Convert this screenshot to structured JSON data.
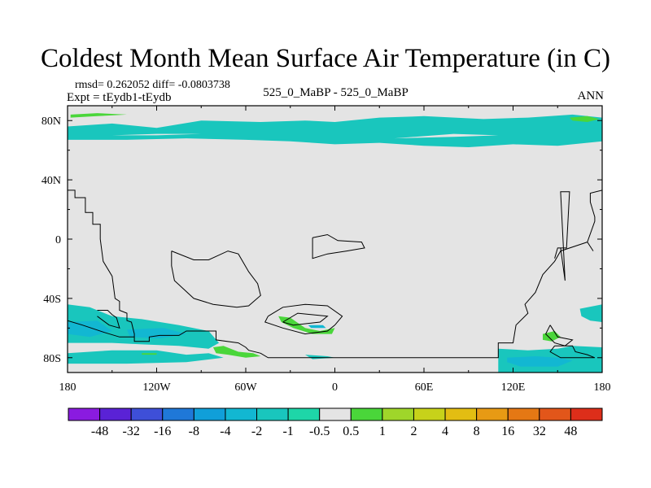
{
  "chart_data": {
    "type": "heatmap",
    "title": "Coldest Month Mean Surface Air Temperature (in C)",
    "stats": "rmsd= 0.262052 diff= -0.0803738",
    "experiment": "Expt = tEydb1-tEydb",
    "center_label": "525_0_MaBP - 525_0_MaBP",
    "season": "ANN",
    "xlabel": "",
    "ylabel": "",
    "xlim": [
      -180,
      180
    ],
    "ylim": [
      -90,
      90
    ],
    "x_ticks": [
      {
        "value": -180,
        "label": "180"
      },
      {
        "value": -120,
        "label": "120W"
      },
      {
        "value": -60,
        "label": "60W"
      },
      {
        "value": 0,
        "label": "0"
      },
      {
        "value": 60,
        "label": "60E"
      },
      {
        "value": 120,
        "label": "120E"
      },
      {
        "value": 180,
        "label": "180"
      }
    ],
    "y_ticks": [
      {
        "value": 80,
        "label": "80N"
      },
      {
        "value": 40,
        "label": "40N"
      },
      {
        "value": 0,
        "label": "0"
      },
      {
        "value": -40,
        "label": "40S"
      },
      {
        "value": -80,
        "label": "80S"
      }
    ],
    "colorbar": {
      "labels": [
        "-48",
        "-32",
        "-16",
        "-8",
        "-4",
        "-2",
        "-1",
        "-0.5",
        "0.5",
        "1",
        "2",
        "4",
        "8",
        "16",
        "32",
        "48"
      ],
      "colors": [
        "#8a1be0",
        "#5a22d6",
        "#3e4fd8",
        "#1f78d8",
        "#109fd9",
        "#12b7d2",
        "#19c6bd",
        "#1ed6a8",
        "#e4e4e4",
        "#4ad63a",
        "#9fd62a",
        "#c7d21a",
        "#e3bd12",
        "#e79a14",
        "#e57814",
        "#e2561a",
        "#dd2e1a"
      ]
    },
    "regions": [
      {
        "color": "#19c6bd",
        "lonlat": [
          [
            -180,
            76
          ],
          [
            -150,
            78
          ],
          [
            -120,
            75
          ],
          [
            -90,
            80
          ],
          [
            -50,
            79
          ],
          [
            -20,
            80
          ],
          [
            0,
            79
          ],
          [
            30,
            82
          ],
          [
            60,
            83
          ],
          [
            100,
            81
          ],
          [
            130,
            82
          ],
          [
            160,
            84
          ],
          [
            180,
            82
          ],
          [
            180,
            66
          ],
          [
            150,
            63
          ],
          [
            120,
            64
          ],
          [
            90,
            62
          ],
          [
            60,
            63
          ],
          [
            30,
            65
          ],
          [
            0,
            64
          ],
          [
            -30,
            66
          ],
          [
            -60,
            67
          ],
          [
            -100,
            68
          ],
          [
            -140,
            67
          ],
          [
            -180,
            67
          ]
        ]
      },
      {
        "color": "#e4e4e4",
        "lonlat": [
          [
            -150,
            70
          ],
          [
            -120,
            71
          ],
          [
            -90,
            71
          ],
          [
            -120,
            70
          ]
        ]
      },
      {
        "color": "#e4e4e4",
        "lonlat": [
          [
            40,
            68
          ],
          [
            80,
            71
          ],
          [
            110,
            70
          ],
          [
            80,
            69
          ]
        ]
      },
      {
        "color": "#4ad63a",
        "lonlat": [
          [
            -178,
            84
          ],
          [
            -160,
            85
          ],
          [
            -140,
            84
          ],
          [
            -160,
            83
          ],
          [
            -178,
            82
          ]
        ]
      },
      {
        "color": "#4ad63a",
        "lonlat": [
          [
            158,
            82
          ],
          [
            170,
            83
          ],
          [
            178,
            81
          ],
          [
            170,
            79
          ],
          [
            160,
            80
          ]
        ]
      },
      {
        "color": "#19c6bd",
        "lonlat": [
          [
            -180,
            -44
          ],
          [
            -165,
            -46
          ],
          [
            -150,
            -52
          ],
          [
            -130,
            -54
          ],
          [
            -105,
            -58
          ],
          [
            -85,
            -62
          ],
          [
            -78,
            -70
          ],
          [
            -85,
            -74
          ],
          [
            -105,
            -72
          ],
          [
            -130,
            -71
          ],
          [
            -150,
            -70
          ],
          [
            -180,
            -70
          ]
        ]
      },
      {
        "color": "#19c6bd",
        "lonlat": [
          [
            -180,
            -77
          ],
          [
            -150,
            -75
          ],
          [
            -120,
            -75
          ],
          [
            -100,
            -78
          ],
          [
            -85,
            -77
          ],
          [
            -75,
            -80
          ],
          [
            -100,
            -83
          ],
          [
            -140,
            -84
          ],
          [
            -180,
            -84
          ]
        ]
      },
      {
        "color": "#12b7d2",
        "lonlat": [
          [
            -180,
            -56
          ],
          [
            -160,
            -55
          ],
          [
            -150,
            -62
          ],
          [
            -165,
            -66
          ],
          [
            -180,
            -64
          ]
        ]
      },
      {
        "color": "#12b7d2",
        "lonlat": [
          [
            -140,
            -61
          ],
          [
            -115,
            -60
          ],
          [
            -100,
            -64
          ],
          [
            -118,
            -67
          ],
          [
            -138,
            -66
          ]
        ]
      },
      {
        "color": "#4ad63a",
        "lonlat": [
          [
            -82,
            -73
          ],
          [
            -75,
            -72
          ],
          [
            -65,
            -76
          ],
          [
            -55,
            -77
          ],
          [
            -50,
            -79
          ],
          [
            -60,
            -80
          ],
          [
            -72,
            -78
          ],
          [
            -80,
            -77
          ]
        ]
      },
      {
        "color": "#4ad63a",
        "lonlat": [
          [
            -130,
            -77
          ],
          [
            -120,
            -77
          ],
          [
            -120,
            -78
          ],
          [
            -130,
            -78
          ]
        ]
      },
      {
        "color": "#4ad63a",
        "lonlat": [
          [
            -38,
            -52
          ],
          [
            -30,
            -53
          ],
          [
            -20,
            -60
          ],
          [
            -10,
            -62
          ],
          [
            0,
            -60
          ],
          [
            -2,
            -64
          ],
          [
            -15,
            -64
          ],
          [
            -28,
            -60
          ],
          [
            -36,
            -56
          ]
        ]
      },
      {
        "color": "#12b7d2",
        "lonlat": [
          [
            -18,
            -58
          ],
          [
            -8,
            -58
          ],
          [
            -6,
            -60
          ],
          [
            -16,
            -60
          ]
        ]
      },
      {
        "color": "#19c6bd",
        "lonlat": [
          [
            110,
            -74
          ],
          [
            130,
            -75
          ],
          [
            150,
            -74
          ],
          [
            160,
            -72
          ],
          [
            180,
            -73
          ],
          [
            180,
            -90
          ],
          [
            110,
            -90
          ]
        ]
      },
      {
        "color": "#12b7d2",
        "lonlat": [
          [
            116,
            -80
          ],
          [
            135,
            -79
          ],
          [
            150,
            -80
          ],
          [
            160,
            -82
          ],
          [
            150,
            -86
          ],
          [
            125,
            -86
          ],
          [
            116,
            -83
          ]
        ]
      },
      {
        "color": "#4ad63a",
        "lonlat": [
          [
            140,
            -64
          ],
          [
            148,
            -62
          ],
          [
            152,
            -66
          ],
          [
            146,
            -69
          ],
          [
            140,
            -68
          ]
        ]
      },
      {
        "color": "#19c6bd",
        "lonlat": [
          [
            165,
            -47
          ],
          [
            180,
            -44
          ],
          [
            180,
            -56
          ],
          [
            172,
            -55
          ],
          [
            166,
            -52
          ]
        ]
      },
      {
        "color": "#19c6bd",
        "lonlat": [
          [
            -20,
            -78
          ],
          [
            -5,
            -79
          ],
          [
            0,
            -80
          ],
          [
            -15,
            -81
          ]
        ]
      }
    ],
    "coastlines": [
      [
        [
          -180,
          33
        ],
        [
          -175,
          33
        ],
        [
          -175,
          28
        ],
        [
          -168,
          28
        ],
        [
          -168,
          18
        ],
        [
          -163,
          18
        ],
        [
          -163,
          10
        ],
        [
          -158,
          10
        ],
        [
          -158,
          0
        ],
        [
          -156,
          -15
        ],
        [
          -150,
          -25
        ],
        [
          -148,
          -40
        ],
        [
          -145,
          -42
        ],
        [
          -145,
          -48
        ],
        [
          -140,
          -50
        ],
        [
          -140,
          -55
        ],
        [
          -137,
          -56
        ],
        [
          -135,
          -64
        ],
        [
          -135,
          -69
        ],
        [
          -125,
          -69
        ],
        [
          -125,
          -66
        ],
        [
          -118,
          -65
        ],
        [
          -105,
          -65
        ],
        [
          -100,
          -62
        ],
        [
          -80,
          -62
        ],
        [
          -80,
          -68
        ],
        [
          -65,
          -70
        ],
        [
          -60,
          -73
        ],
        [
          -58,
          -75
        ],
        [
          -50,
          -77
        ],
        [
          -45,
          -80
        ],
        [
          40,
          -80
        ],
        [
          110,
          -80
        ],
        [
          110,
          -70
        ],
        [
          120,
          -70
        ],
        [
          122,
          -58
        ],
        [
          130,
          -50
        ],
        [
          128,
          -44
        ],
        [
          135,
          -36
        ],
        [
          140,
          -24
        ],
        [
          148,
          -15
        ],
        [
          152,
          -8
        ],
        [
          170,
          -2
        ],
        [
          174,
          -8
        ],
        [
          170,
          -2
        ],
        [
          175,
          12
        ],
        [
          175,
          15
        ],
        [
          172,
          25
        ],
        [
          172,
          31
        ],
        [
          180,
          33
        ]
      ],
      [
        [
          -160,
          -48
        ],
        [
          -153,
          -48
        ],
        [
          -150,
          -51
        ],
        [
          -147,
          -53
        ],
        [
          -145,
          -60
        ],
        [
          -152,
          -58
        ],
        [
          -160,
          -52
        ]
      ],
      [
        [
          -180,
          -55
        ],
        [
          -170,
          -58
        ],
        [
          -155,
          -63
        ],
        [
          -145,
          -66
        ],
        [
          -135,
          -66
        ]
      ],
      [
        [
          -110,
          -8
        ],
        [
          -95,
          -14
        ],
        [
          -85,
          -14
        ],
        [
          -72,
          -8
        ],
        [
          -65,
          -10
        ],
        [
          -58,
          -22
        ],
        [
          -52,
          -30
        ],
        [
          -50,
          -38
        ],
        [
          -58,
          -45
        ],
        [
          -66,
          -46
        ],
        [
          -82,
          -44
        ],
        [
          -95,
          -40
        ],
        [
          -108,
          -28
        ],
        [
          -110,
          -18
        ],
        [
          -110,
          -8
        ]
      ],
      [
        [
          -15,
          1
        ],
        [
          -5,
          3
        ],
        [
          2,
          -1
        ],
        [
          18,
          -2
        ],
        [
          20,
          -6
        ],
        [
          8,
          -8
        ],
        [
          -5,
          -10
        ],
        [
          -15,
          -13
        ],
        [
          -15,
          -10
        ],
        [
          -15,
          1
        ]
      ],
      [
        [
          -45,
          -52
        ],
        [
          -35,
          -46
        ],
        [
          -20,
          -44
        ],
        [
          -5,
          -45
        ],
        [
          5,
          -52
        ],
        [
          0,
          -58
        ],
        [
          -5,
          -62
        ],
        [
          -20,
          -64
        ],
        [
          -35,
          -60
        ],
        [
          -47,
          -56
        ],
        [
          -45,
          -52
        ]
      ],
      [
        [
          -35,
          -56
        ],
        [
          -25,
          -50
        ],
        [
          -5,
          -52
        ],
        [
          -10,
          -56
        ],
        [
          -28,
          -58
        ],
        [
          -35,
          -56
        ]
      ],
      [
        [
          145,
          -58
        ],
        [
          150,
          -66
        ],
        [
          160,
          -68
        ],
        [
          155,
          -72
        ],
        [
          148,
          -70
        ],
        [
          142,
          -64
        ],
        [
          145,
          -58
        ]
      ],
      [
        [
          148,
          -13
        ],
        [
          150,
          -6
        ],
        [
          152,
          -6
        ],
        [
          155,
          -28
        ],
        [
          152,
          32
        ],
        [
          158,
          32
        ],
        [
          156,
          -6
        ],
        [
          150,
          -6
        ]
      ],
      [
        [
          148,
          -72
        ],
        [
          160,
          -72
        ],
        [
          162,
          -76
        ],
        [
          170,
          -78
        ],
        [
          175,
          -80
        ],
        [
          165,
          -80
        ],
        [
          152,
          -80
        ],
        [
          145,
          -76
        ],
        [
          148,
          -72
        ]
      ]
    ]
  }
}
